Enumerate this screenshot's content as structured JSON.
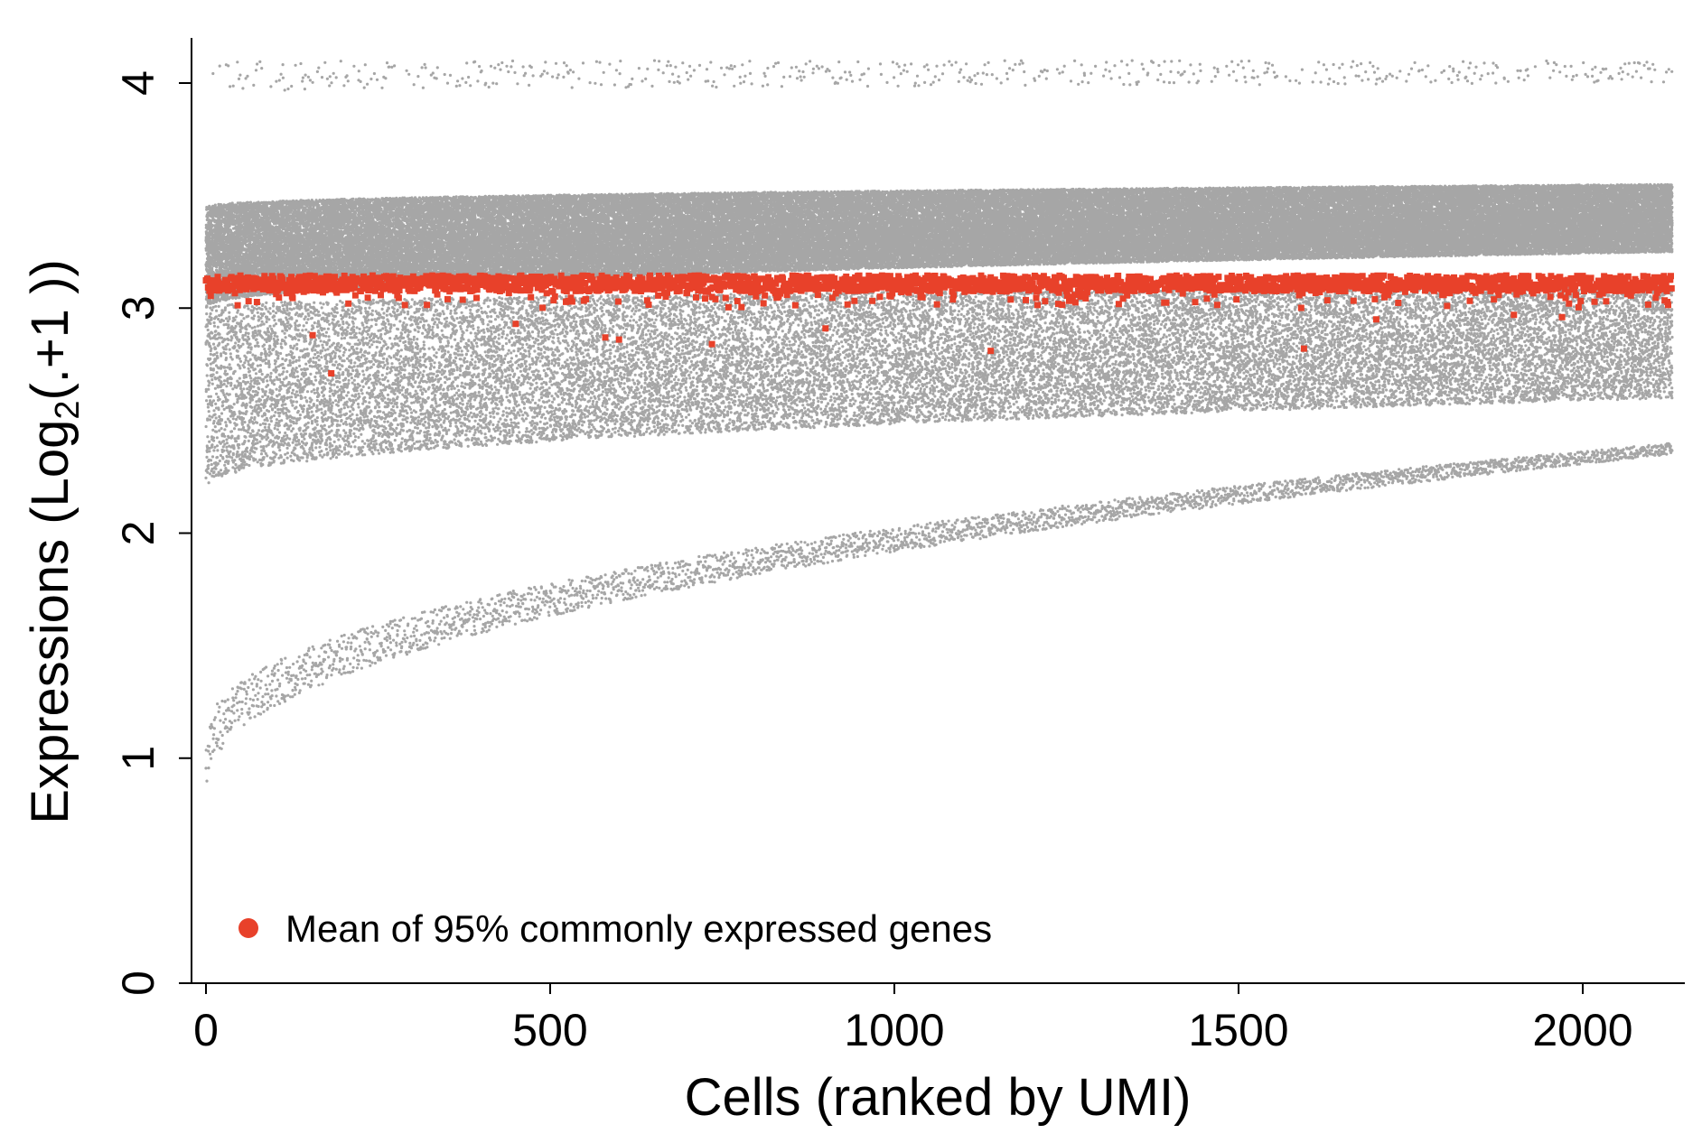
{
  "chart_data": {
    "type": "scatter",
    "title": "",
    "xlabel": "Cells (ranked by UMI)",
    "ylabel_main": "Expressions (Log",
    "ylabel_sub": "2",
    "ylabel_tail": "(.+1 ))",
    "xlim": [
      -20,
      2150
    ],
    "ylim": [
      0,
      4.2
    ],
    "x_ticks": [
      0,
      500,
      1000,
      1500,
      2000
    ],
    "x_tick_labels": [
      "0",
      "500",
      "1000",
      "1500",
      "2000"
    ],
    "y_ticks": [
      0,
      1,
      2,
      3,
      4
    ],
    "y_tick_labels": [
      "0",
      "1",
      "2",
      "3",
      "4"
    ],
    "grid": false,
    "legend_position": "bottom-left",
    "n_cells": 2130,
    "series": [
      {
        "name": "",
        "color": "#a6a6a6",
        "description_bands": [
          {
            "x": [
              0,
              2130
            ],
            "y_from": [
              3.0,
              3.25
            ],
            "y_to": [
              3.45,
              3.55
            ]
          },
          {
            "x": [
              0,
              2130
            ],
            "y_from": [
              2.2,
              2.6
            ],
            "y_to": [
              3.0,
              3.1
            ]
          },
          {
            "x": [
              0,
              2130
            ],
            "y_from": [
              0.85,
              2.35
            ],
            "y_to": [
              1.1,
              2.4
            ]
          },
          {
            "x": [
              0,
              2130
            ],
            "y_from": [
              3.95,
              4.0
            ],
            "y_to": [
              4.1,
              4.1
            ]
          }
        ]
      },
      {
        "name": "Mean of 95% commonly expressed genes",
        "color": "#e8412a",
        "center_y": 3.11,
        "outliers": [
          {
            "x": 155,
            "y": 2.88
          },
          {
            "x": 182,
            "y": 2.71
          },
          {
            "x": 580,
            "y": 2.87
          },
          {
            "x": 600,
            "y": 2.86
          },
          {
            "x": 735,
            "y": 2.84
          },
          {
            "x": 1140,
            "y": 2.81
          },
          {
            "x": 1595,
            "y": 2.82
          },
          {
            "x": 1970,
            "y": 2.96
          },
          {
            "x": 1700,
            "y": 2.95
          },
          {
            "x": 450,
            "y": 2.93
          },
          {
            "x": 900,
            "y": 2.91
          },
          {
            "x": 1900,
            "y": 2.97
          }
        ]
      }
    ]
  },
  "legend": {
    "items": [
      {
        "label": "Mean of 95% commonly expressed genes",
        "color": "#e8412a"
      }
    ]
  },
  "colors": {
    "gray_points": "#a6a6a6",
    "red_points": "#e8412a",
    "axis": "#000000"
  }
}
